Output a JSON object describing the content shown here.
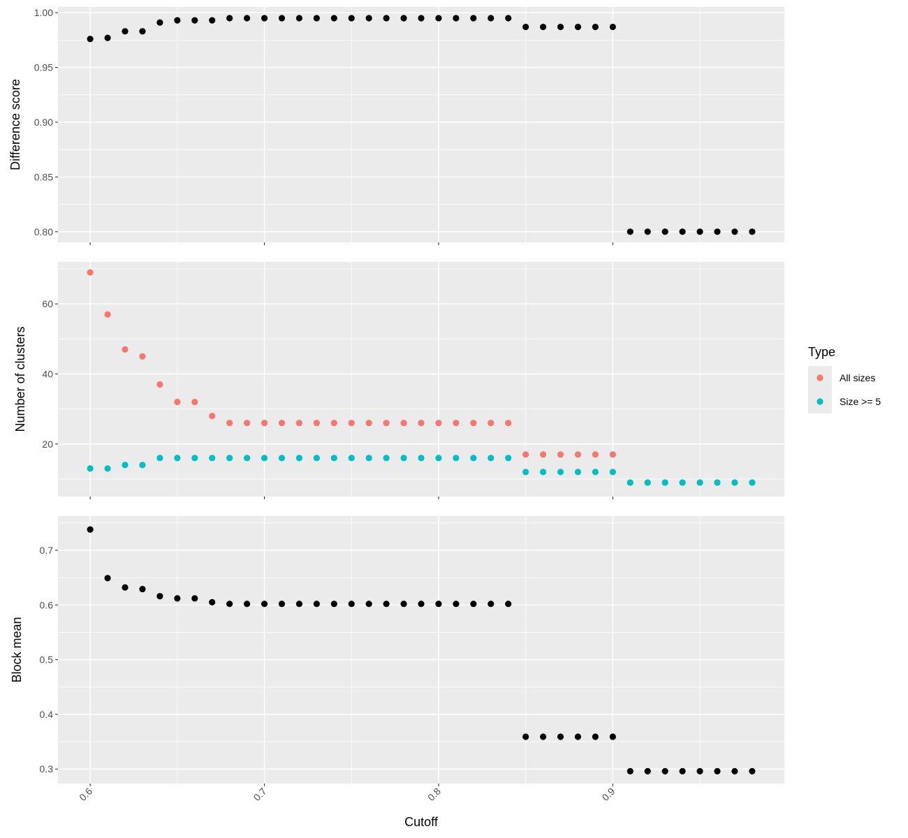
{
  "chart_data": {
    "type": "scatter",
    "xlabel": "Cutoff",
    "x_ticks": [
      "0.6",
      "0.7",
      "0.8",
      "0.9"
    ],
    "x_tick_values": [
      0.6,
      0.7,
      0.8,
      0.9
    ],
    "xlim": [
      0.5815,
      0.9985
    ],
    "x": [
      0.6,
      0.61,
      0.62,
      0.63,
      0.64,
      0.65,
      0.66,
      0.67,
      0.68,
      0.69,
      0.7,
      0.71,
      0.72,
      0.73,
      0.74,
      0.75,
      0.76,
      0.77,
      0.78,
      0.79,
      0.8,
      0.81,
      0.82,
      0.83,
      0.84,
      0.85,
      0.86,
      0.87,
      0.88,
      0.89,
      0.9,
      0.91,
      0.92,
      0.93,
      0.94,
      0.95,
      0.96,
      0.97,
      0.98
    ],
    "grid": true,
    "legend": {
      "title": "Type",
      "position": "right",
      "entries": [
        {
          "name": "All sizes",
          "color": "#F8766D"
        },
        {
          "name": "Size >= 5",
          "color": "#00BFC4"
        }
      ]
    },
    "panels": [
      {
        "ylabel": "Difference score",
        "ylim": [
          0.7903,
          1.0052
        ],
        "y_ticks": [
          "0.80",
          "0.85",
          "0.90",
          "0.95",
          "1.00"
        ],
        "y_tick_values": [
          0.8,
          0.85,
          0.9,
          0.95,
          1.0
        ],
        "series": [
          {
            "color": "#000000",
            "values": [
              0.976,
              0.977,
              0.983,
              0.983,
              0.991,
              0.993,
              0.993,
              0.993,
              0.995,
              0.995,
              0.995,
              0.995,
              0.995,
              0.995,
              0.995,
              0.995,
              0.995,
              0.995,
              0.995,
              0.995,
              0.995,
              0.995,
              0.995,
              0.995,
              0.995,
              0.987,
              0.987,
              0.987,
              0.987,
              0.987,
              0.987,
              0.8,
              0.8,
              0.8,
              0.8,
              0.8,
              0.8,
              0.8,
              0.8
            ]
          }
        ]
      },
      {
        "ylabel": "Number of clusters",
        "ylim": [
          5.0,
          72.0
        ],
        "y_ticks": [
          "20",
          "40",
          "60"
        ],
        "y_tick_values": [
          20,
          40,
          60
        ],
        "series": [
          {
            "name": "All sizes",
            "color": "#F8766D",
            "values": [
              69,
              57,
              47,
              45,
              37,
              32,
              32,
              28,
              26,
              26,
              26,
              26,
              26,
              26,
              26,
              26,
              26,
              26,
              26,
              26,
              26,
              26,
              26,
              26,
              26,
              17,
              17,
              17,
              17,
              17,
              17,
              9,
              9,
              9,
              9,
              9,
              9,
              9,
              9
            ]
          },
          {
            "name": "Size >= 5",
            "color": "#00BFC4",
            "values": [
              13,
              13,
              14,
              14,
              16,
              16,
              16,
              16,
              16,
              16,
              16,
              16,
              16,
              16,
              16,
              16,
              16,
              16,
              16,
              16,
              16,
              16,
              16,
              16,
              16,
              12,
              12,
              12,
              12,
              12,
              12,
              9,
              9,
              9,
              9,
              9,
              9,
              9,
              9
            ]
          }
        ]
      },
      {
        "ylabel": "Block mean",
        "ylim": [
          0.2735,
          0.7625
        ],
        "y_ticks": [
          "0.3",
          "0.4",
          "0.5",
          "0.6",
          "0.7"
        ],
        "y_tick_values": [
          0.3,
          0.4,
          0.5,
          0.6,
          0.7
        ],
        "series": [
          {
            "color": "#000000",
            "values": [
              0.738,
              0.649,
              0.632,
              0.629,
              0.616,
              0.612,
              0.612,
              0.605,
              0.602,
              0.602,
              0.602,
              0.602,
              0.602,
              0.602,
              0.602,
              0.602,
              0.602,
              0.602,
              0.602,
              0.602,
              0.602,
              0.602,
              0.602,
              0.602,
              0.602,
              0.359,
              0.359,
              0.359,
              0.359,
              0.359,
              0.359,
              0.296,
              0.296,
              0.296,
              0.296,
              0.296,
              0.296,
              0.296,
              0.296
            ]
          }
        ]
      }
    ]
  }
}
